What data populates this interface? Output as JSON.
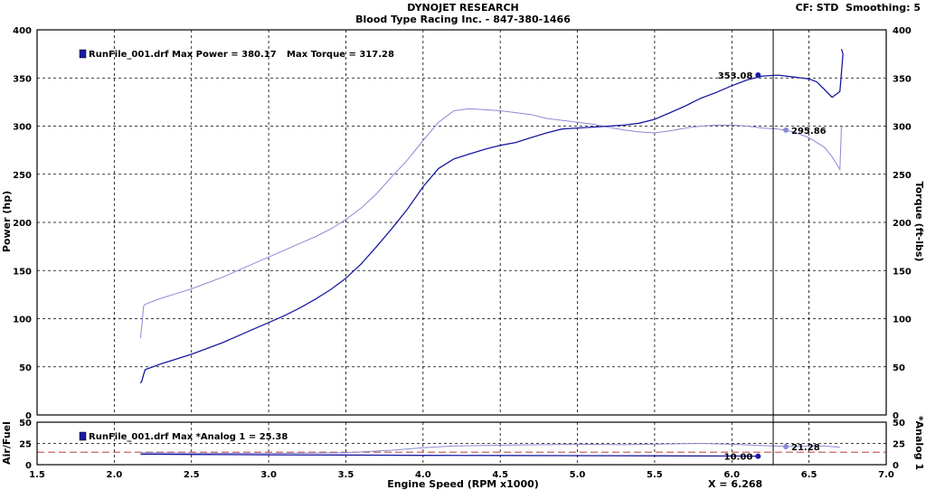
{
  "header": {
    "title": "DYNOJET RESEARCH",
    "subtitle": "Blood Type Racing Inc. - 847-380-1466",
    "cf_label": "CF: STD",
    "smoothing_label": "Smoothing: 5"
  },
  "colors": {
    "power": "#1a1aa0",
    "torque": "#8a8ad8",
    "afr_target": "#c05050",
    "grid": "#000000"
  },
  "chart_data": [
    {
      "type": "line",
      "xlabel": "Engine Speed (RPM x1000)",
      "ylabel": "Power (hp)",
      "ylabel_right": "Torque (ft-lbs)",
      "xlim": [
        1.5,
        7.0
      ],
      "ylim": [
        0,
        400
      ],
      "x_ticks": [
        "1.5",
        "2.0",
        "2.5",
        "3.0",
        "3.5",
        "4.0",
        "4.5",
        "5.0",
        "5.5",
        "6.0",
        "6.5",
        "7.0"
      ],
      "y_ticks": [
        "0",
        "50",
        "100",
        "150",
        "200",
        "250",
        "300",
        "350",
        "400"
      ],
      "grid": true,
      "legend_text": "RunFile_001.drf Max Power = 380.17",
      "torque_text": "Max Torque = 317.28",
      "cursor_x": 6.268,
      "annotations": [
        {
          "text": "353.08",
          "x": 6.17,
          "y": 353.08,
          "series": "Power"
        },
        {
          "text": "295.86",
          "x": 6.35,
          "y": 295.86,
          "series": "Torque"
        }
      ],
      "series": [
        {
          "name": "Power",
          "axis": "left",
          "x": [
            2.17,
            2.18,
            2.19,
            2.2,
            2.3,
            2.4,
            2.5,
            2.6,
            2.7,
            2.8,
            2.9,
            3.0,
            3.1,
            3.2,
            3.3,
            3.4,
            3.5,
            3.6,
            3.7,
            3.8,
            3.9,
            4.0,
            4.1,
            4.2,
            4.3,
            4.4,
            4.5,
            4.6,
            4.7,
            4.8,
            4.9,
            5.0,
            5.1,
            5.2,
            5.3,
            5.4,
            5.5,
            5.6,
            5.7,
            5.8,
            5.9,
            6.0,
            6.1,
            6.2,
            6.3,
            6.4,
            6.5,
            6.55,
            6.6,
            6.65,
            6.7,
            6.72,
            6.71
          ],
          "y": [
            33,
            36,
            42,
            47,
            53,
            58,
            63,
            69,
            75,
            82,
            89,
            96,
            103,
            111,
            120,
            130,
            142,
            157,
            175,
            194,
            214,
            237,
            256,
            266,
            271,
            276,
            280,
            283,
            288,
            293,
            297,
            298,
            299,
            300,
            301,
            303,
            307,
            314,
            321,
            329,
            335,
            342,
            348,
            352,
            353,
            351,
            349,
            346,
            338,
            330,
            336,
            375,
            380
          ]
        },
        {
          "name": "Torque",
          "axis": "right",
          "x": [
            2.17,
            2.18,
            2.19,
            2.2,
            2.3,
            2.4,
            2.5,
            2.6,
            2.7,
            2.8,
            2.9,
            3.0,
            3.1,
            3.2,
            3.3,
            3.4,
            3.5,
            3.6,
            3.7,
            3.8,
            3.9,
            4.0,
            4.1,
            4.2,
            4.3,
            4.4,
            4.5,
            4.6,
            4.7,
            4.8,
            4.9,
            5.0,
            5.1,
            5.2,
            5.3,
            5.4,
            5.5,
            5.6,
            5.7,
            5.8,
            5.9,
            6.0,
            6.1,
            6.2,
            6.3,
            6.4,
            6.5,
            6.6,
            6.65,
            6.7,
            6.71
          ],
          "y": [
            80,
            95,
            113,
            115,
            121,
            126,
            131,
            137,
            143,
            150,
            157,
            164,
            171,
            178,
            185,
            193,
            203,
            215,
            230,
            248,
            265,
            285,
            304,
            316,
            318,
            317,
            316,
            314,
            312,
            308,
            306,
            304,
            302,
            299,
            296,
            294,
            293,
            295,
            298,
            300,
            301,
            301,
            300,
            298,
            297,
            294,
            288,
            278,
            268,
            255,
            300
          ]
        }
      ]
    },
    {
      "type": "line",
      "xlabel": "",
      "ylabel": "Air/Fuel",
      "ylabel_right": "*Analog 1",
      "xlim": [
        1.5,
        7.0
      ],
      "ylim": [
        0,
        50
      ],
      "y_ticks": [
        "0",
        "25",
        "50"
      ],
      "grid": true,
      "legend_text": "RunFile_001.drf Max *Analog 1 = 25.38",
      "target_line": 14.7,
      "annotations": [
        {
          "text": "10.00",
          "x": 6.17,
          "y": 10.0,
          "series": "Air/Fuel"
        },
        {
          "text": "21.28",
          "x": 6.35,
          "y": 21.28,
          "series": "*Analog 1"
        }
      ],
      "series": [
        {
          "name": "Air/Fuel",
          "x": [
            2.17,
            2.5,
            3.0,
            3.5,
            4.0,
            4.5,
            5.0,
            5.5,
            6.0,
            6.17
          ],
          "y": [
            12.5,
            12.0,
            11.6,
            11.4,
            11.0,
            10.8,
            10.6,
            10.4,
            10.2,
            10.0
          ]
        },
        {
          "name": "*Analog 1",
          "x": [
            2.17,
            2.5,
            3.0,
            3.5,
            3.8,
            4.0,
            4.2,
            4.5,
            4.8,
            5.0,
            5.3,
            5.6,
            5.8,
            6.0,
            6.2,
            6.4,
            6.6,
            6.7
          ],
          "y": [
            14.0,
            13.5,
            13.0,
            14.0,
            17.0,
            20.0,
            22.0,
            23.0,
            23.5,
            24.0,
            23.5,
            24.5,
            25.0,
            24.0,
            22.5,
            21.28,
            22.0,
            20.5
          ]
        }
      ]
    }
  ],
  "status": {
    "x_readout": "X = 6.268"
  }
}
